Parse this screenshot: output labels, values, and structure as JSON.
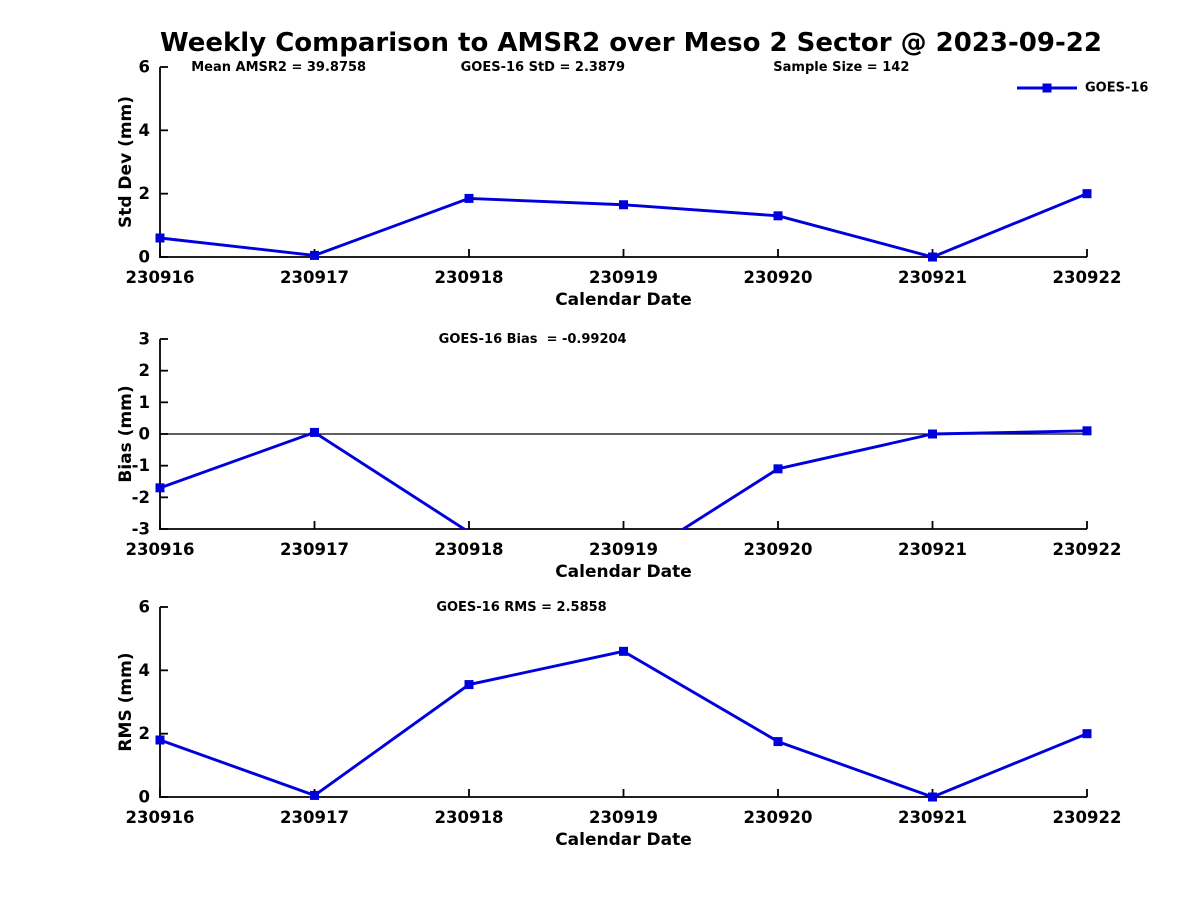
{
  "title": "Weekly Comparison to AMSR2 over Meso 2 Sector @ 2023-09-22",
  "colors": {
    "series": "#0000dd",
    "axis": "#000000",
    "text": "#000000",
    "background": "#ffffff"
  },
  "legend": {
    "label": "GOES-16",
    "position": "top-right"
  },
  "stats": {
    "mean_amsr2": 39.8758,
    "goes16_std": 2.3879,
    "sample_size": 142,
    "goes16_bias": -0.99204,
    "goes16_rms": 2.5858
  },
  "chart_data": [
    {
      "id": "stddev",
      "type": "line",
      "title": "",
      "xlabel": "Calendar Date",
      "ylabel": "Std Dev (mm)",
      "categories": [
        "230916",
        "230917",
        "230918",
        "230919",
        "230920",
        "230921",
        "230922"
      ],
      "series": [
        {
          "name": "GOES-16",
          "values": [
            0.6,
            0.05,
            1.85,
            1.65,
            1.3,
            0.0,
            2.0
          ]
        }
      ],
      "ylim": [
        0,
        6
      ],
      "yticks": [
        0,
        2,
        4,
        6
      ],
      "annotations": [
        "Mean AMSR2 = 39.8758",
        "GOES-16 StD = 2.3879",
        "Sample Size = 142"
      ],
      "legend_label": "GOES-16",
      "zero_line": false,
      "grid": false
    },
    {
      "id": "bias",
      "type": "line",
      "title": "",
      "xlabel": "Calendar Date",
      "ylabel": "Bias (mm)",
      "categories": [
        "230916",
        "230917",
        "230918",
        "230919",
        "230920",
        "230921",
        "230922"
      ],
      "series": [
        {
          "name": "GOES-16",
          "values": [
            -1.7,
            0.05,
            -3.1,
            -4.2,
            -1.1,
            0.0,
            0.1
          ]
        }
      ],
      "ylim": [
        -3,
        3
      ],
      "yticks": [
        -3,
        -2,
        -1,
        0,
        1,
        2,
        3
      ],
      "annotations": [
        "GOES-16 Bias  = -0.99204"
      ],
      "legend_label": null,
      "zero_line": true,
      "grid": false
    },
    {
      "id": "rms",
      "type": "line",
      "title": "",
      "xlabel": "Calendar Date",
      "ylabel": "RMS (mm)",
      "categories": [
        "230916",
        "230917",
        "230918",
        "230919",
        "230920",
        "230921",
        "230922"
      ],
      "series": [
        {
          "name": "GOES-16",
          "values": [
            1.8,
            0.05,
            3.55,
            4.6,
            1.75,
            0.0,
            2.0
          ]
        }
      ],
      "ylim": [
        0,
        6
      ],
      "yticks": [
        0,
        2,
        4,
        6
      ],
      "annotations": [
        "GOES-16 RMS = 2.5858"
      ],
      "legend_label": null,
      "zero_line": false,
      "grid": false
    }
  ]
}
